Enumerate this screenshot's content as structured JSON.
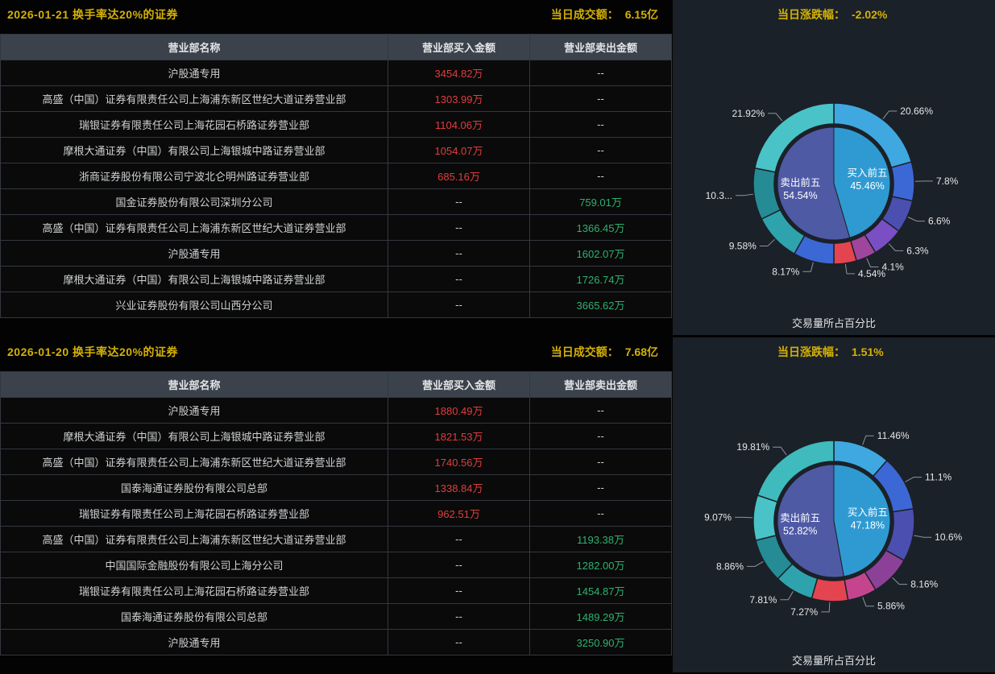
{
  "sections": [
    {
      "title": "2026-01-21 换手率达20%的证券",
      "turnover_label": "当日成交额：",
      "turnover_value": "6.15亿",
      "change_label": "当日涨跌幅：",
      "change_value": "-2.02%",
      "chart_caption": "交易量所占百分比",
      "table": {
        "headers": [
          "营业部名称",
          "营业部买入金额",
          "营业部卖出金额"
        ],
        "rows": [
          {
            "name": "沪股通专用",
            "buy": "3454.82万",
            "sell": "--"
          },
          {
            "name": "高盛（中国）证券有限责任公司上海浦东新区世纪大道证券营业部",
            "buy": "1303.99万",
            "sell": "--"
          },
          {
            "name": "瑞银证券有限责任公司上海花园石桥路证券营业部",
            "buy": "1104.06万",
            "sell": "--"
          },
          {
            "name": "摩根大通证券（中国）有限公司上海银城中路证券营业部",
            "buy": "1054.07万",
            "sell": "--"
          },
          {
            "name": "浙商证券股份有限公司宁波北仑明州路证券营业部",
            "buy": "685.16万",
            "sell": "--"
          },
          {
            "name": "国金证券股份有限公司深圳分公司",
            "buy": "--",
            "sell": "759.01万"
          },
          {
            "name": "高盛（中国）证券有限责任公司上海浦东新区世纪大道证券营业部",
            "buy": "--",
            "sell": "1366.45万"
          },
          {
            "name": "沪股通专用",
            "buy": "--",
            "sell": "1602.07万"
          },
          {
            "name": "摩根大通证券（中国）有限公司上海银城中路证券营业部",
            "buy": "--",
            "sell": "1726.74万"
          },
          {
            "name": "兴业证券股份有限公司山西分公司",
            "buy": "--",
            "sell": "3665.62万"
          }
        ]
      }
    },
    {
      "title": "2026-01-20 换手率达20%的证券",
      "turnover_label": "当日成交额：",
      "turnover_value": "7.68亿",
      "change_label": "当日涨跌幅：",
      "change_value": "1.51%",
      "chart_caption": "交易量所占百分比",
      "table": {
        "headers": [
          "营业部名称",
          "营业部买入金额",
          "营业部卖出金额"
        ],
        "rows": [
          {
            "name": "沪股通专用",
            "buy": "1880.49万",
            "sell": "--"
          },
          {
            "name": "摩根大通证券（中国）有限公司上海银城中路证券营业部",
            "buy": "1821.53万",
            "sell": "--"
          },
          {
            "name": "高盛（中国）证券有限责任公司上海浦东新区世纪大道证券营业部",
            "buy": "1740.56万",
            "sell": "--"
          },
          {
            "name": "国泰海通证券股份有限公司总部",
            "buy": "1338.84万",
            "sell": "--"
          },
          {
            "name": "瑞银证券有限责任公司上海花园石桥路证券营业部",
            "buy": "962.51万",
            "sell": "--"
          },
          {
            "name": "高盛（中国）证券有限责任公司上海浦东新区世纪大道证券营业部",
            "buy": "--",
            "sell": "1193.38万"
          },
          {
            "name": "中国国际金融股份有限公司上海分公司",
            "buy": "--",
            "sell": "1282.00万"
          },
          {
            "name": "瑞银证券有限责任公司上海花园石桥路证券营业部",
            "buy": "--",
            "sell": "1454.87万"
          },
          {
            "name": "国泰海通证券股份有限公司总部",
            "buy": "--",
            "sell": "1489.29万"
          },
          {
            "name": "沪股通专用",
            "buy": "--",
            "sell": "3250.90万"
          }
        ]
      }
    }
  ],
  "chart_data": [
    {
      "type": "pie",
      "variant": "double-ring-donut",
      "section_date": "2026-01-21",
      "title": "交易量所占百分比",
      "inner_ring": [
        {
          "label": "买入前五",
          "pct_label": "45.46%",
          "value": 45.46,
          "color": "#2f9ad2"
        },
        {
          "label": "卖出前五",
          "pct_label": "54.54%",
          "value": 54.54,
          "color": "#4f5aa5"
        }
      ],
      "outer_ring": [
        {
          "label": "20.66%",
          "value": 20.66,
          "color": "#3fa8e0"
        },
        {
          "label": "7.8%",
          "value": 7.8,
          "color": "#3c68d6"
        },
        {
          "label": "6.6%",
          "value": 6.6,
          "color": "#4b4fb0"
        },
        {
          "label": "6.3%",
          "value": 6.3,
          "color": "#7a4fc4"
        },
        {
          "label": "4.1%",
          "value": 4.1,
          "color": "#a0459c"
        },
        {
          "label": "4.54%",
          "value": 4.54,
          "color": "#e34450"
        },
        {
          "label": "8.17%",
          "value": 8.17,
          "color": "#3c68d6"
        },
        {
          "label": "9.58%",
          "value": 9.58,
          "color": "#2fa3ad"
        },
        {
          "label": "10.3...",
          "value": 10.33,
          "color": "#258c96"
        },
        {
          "label": "21.92%",
          "value": 21.92,
          "color": "#49c3c7"
        }
      ]
    },
    {
      "type": "pie",
      "variant": "double-ring-donut",
      "section_date": "2026-01-20",
      "title": "交易量所占百分比",
      "inner_ring": [
        {
          "label": "买入前五",
          "pct_label": "47.18%",
          "value": 47.18,
          "color": "#2f9ad2"
        },
        {
          "label": "卖出前五",
          "pct_label": "52.82%",
          "value": 52.82,
          "color": "#4f5aa5"
        }
      ],
      "outer_ring": [
        {
          "label": "11.46%",
          "value": 11.46,
          "color": "#3fa8e0"
        },
        {
          "label": "11.1%",
          "value": 11.1,
          "color": "#3c68d6"
        },
        {
          "label": "10.6%",
          "value": 10.6,
          "color": "#4b4fb0"
        },
        {
          "label": "8.16%",
          "value": 8.16,
          "color": "#8c4198"
        },
        {
          "label": "5.86%",
          "value": 5.86,
          "color": "#c4458e"
        },
        {
          "label": "7.27%",
          "value": 7.27,
          "color": "#e34450"
        },
        {
          "label": "7.81%",
          "value": 7.81,
          "color": "#2fa3ad"
        },
        {
          "label": "8.86%",
          "value": 8.86,
          "color": "#258c96"
        },
        {
          "label": "9.07%",
          "value": 9.07,
          "color": "#49c3c7"
        },
        {
          "label": "19.81%",
          "value": 19.81,
          "color": "#3fbabd"
        }
      ]
    }
  ]
}
